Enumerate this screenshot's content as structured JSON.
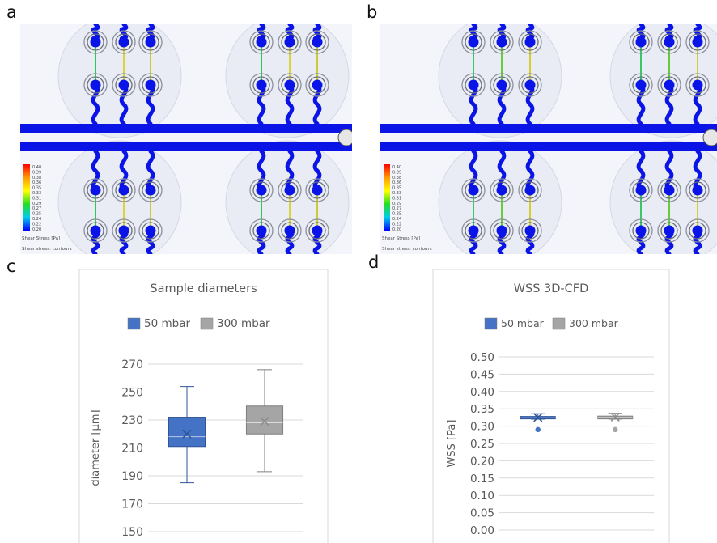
{
  "panel_labels": {
    "a": "a",
    "b": "b",
    "c": "c",
    "d": "d"
  },
  "cfd": {
    "legend_caption": "Shear Stress [Pa]",
    "contour_caption": "Shear stress: contours",
    "a_scale": [
      "0.40",
      "0.39",
      "0.38",
      "0.36",
      "0.35",
      "0.33",
      "0.31",
      "0.29",
      "0.27",
      "0.25",
      "0.24",
      "0.22",
      "0.20"
    ],
    "b_scale": [
      "0.40",
      "0.39",
      "0.38",
      "0.36",
      "0.35",
      "0.33",
      "0.31",
      "0.29",
      "0.27",
      "0.25",
      "0.24",
      "0.22",
      "0.20"
    ]
  },
  "chart_data": [
    {
      "type": "box",
      "title": "Sample diameters",
      "ylabel": "diameter [µm]",
      "ylim": [
        150,
        270
      ],
      "yticks": [
        "270",
        "250",
        "230",
        "210",
        "190",
        "170",
        "150"
      ],
      "legend_position": "top",
      "series": [
        {
          "name": "50 mbar",
          "color": "#4472c4",
          "min": 185,
          "q1": 211,
          "median": 218,
          "mean": 220,
          "q3": 232,
          "max": 254
        },
        {
          "name": "300 mbar",
          "color": "#a5a5a5",
          "min": 193,
          "q1": 220,
          "median": 228,
          "mean": 229,
          "q3": 240,
          "max": 266
        }
      ]
    },
    {
      "type": "box",
      "title": "WSS 3D-CFD",
      "ylabel": "WSS [Pa]",
      "ylim": [
        0,
        0.5
      ],
      "yticks": [
        "0.50",
        "0.45",
        "0.40",
        "0.35",
        "0.30",
        "0.25",
        "0.20",
        "0.15",
        "0.10",
        "0.05",
        "0.00"
      ],
      "legend_position": "top",
      "series": [
        {
          "name": "50 mbar",
          "color": "#4472c4",
          "min": 0.32,
          "q1": 0.321,
          "median": 0.324,
          "mean": 0.325,
          "q3": 0.328,
          "max": 0.336,
          "outliers": [
            0.29
          ]
        },
        {
          "name": "300 mbar",
          "color": "#a5a5a5",
          "min": 0.32,
          "q1": 0.321,
          "median": 0.325,
          "mean": 0.326,
          "q3": 0.329,
          "max": 0.337,
          "outliers": [
            0.29
          ]
        }
      ]
    }
  ]
}
